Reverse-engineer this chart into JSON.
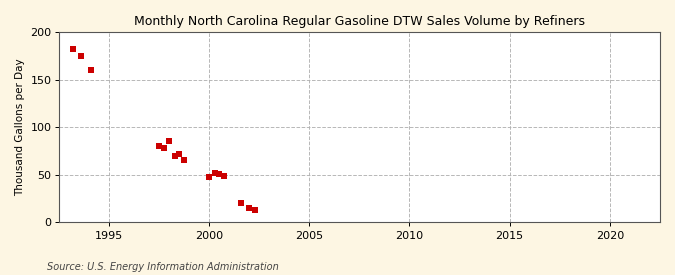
{
  "title": "Monthly North Carolina Regular Gasoline DTW Sales Volume by Refiners",
  "ylabel": "Thousand Gallons per Day",
  "source": "Source: U.S. Energy Information Administration",
  "fig_bg_color": "#fdf6e3",
  "plot_bg_color": "#ffffff",
  "marker_color": "#cc0000",
  "marker": "s",
  "marker_size": 16,
  "xlim": [
    1992.5,
    2022.5
  ],
  "ylim": [
    0,
    200
  ],
  "yticks": [
    0,
    50,
    100,
    150,
    200
  ],
  "xticks": [
    1995,
    2000,
    2005,
    2010,
    2015,
    2020
  ],
  "data_points": [
    [
      1993.2,
      182
    ],
    [
      1993.6,
      175
    ],
    [
      1994.1,
      160
    ],
    [
      1997.5,
      80
    ],
    [
      1997.75,
      78
    ],
    [
      1998.0,
      86
    ],
    [
      1998.3,
      70
    ],
    [
      1998.5,
      72
    ],
    [
      1998.75,
      66
    ],
    [
      2000.0,
      48
    ],
    [
      2000.3,
      52
    ],
    [
      2000.5,
      51
    ],
    [
      2000.75,
      49
    ],
    [
      2001.6,
      20
    ],
    [
      2002.0,
      15
    ],
    [
      2002.3,
      13
    ]
  ]
}
